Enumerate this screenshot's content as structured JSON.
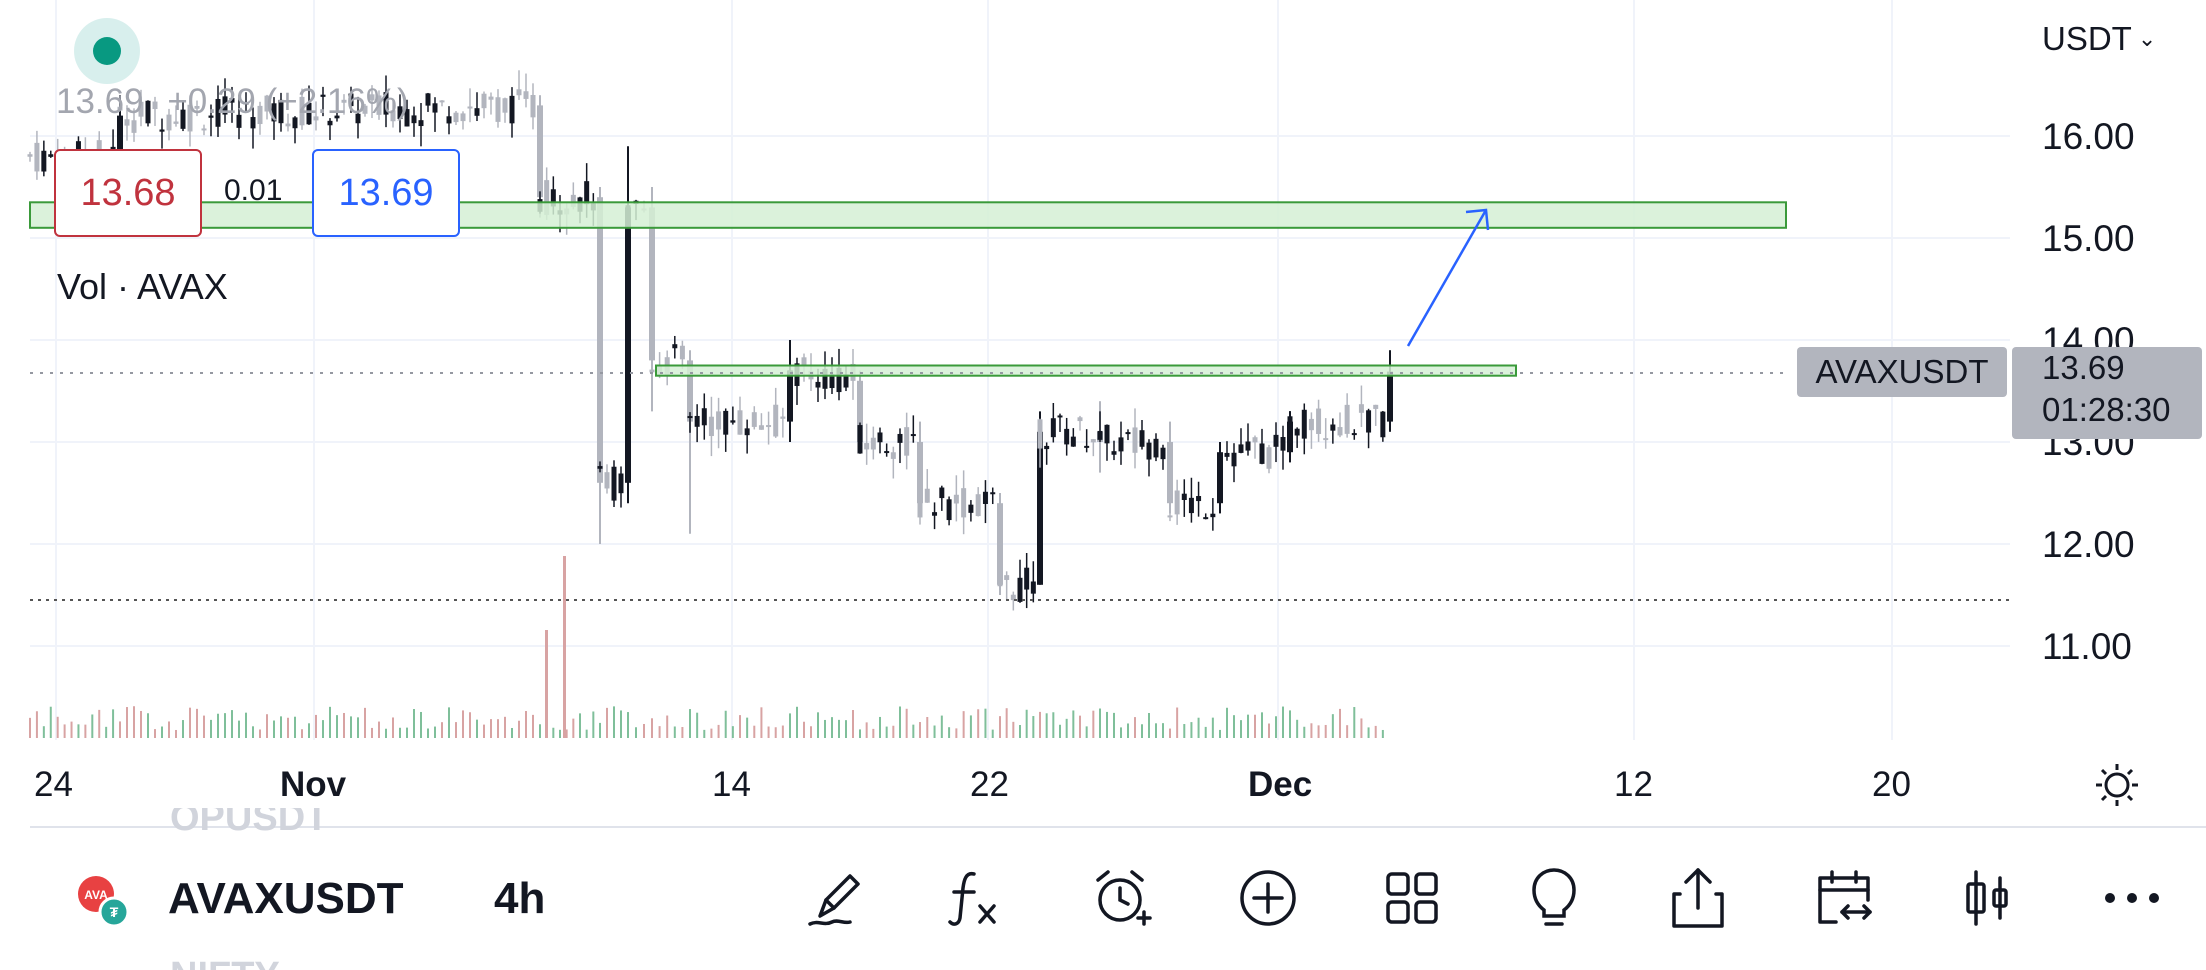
{
  "header": {
    "currency_selector": "USDT",
    "last_price": "13.69",
    "change": "+0.29 (+2.16%)",
    "bid_price": "13.68",
    "spread": "0.01",
    "ask_price": "13.69",
    "volume_label": "Vol · AVAX"
  },
  "price_axis": {
    "labels": [
      "16.00",
      "15.00",
      "14.00",
      "13.00",
      "12.00",
      "11.00"
    ]
  },
  "time_axis": {
    "labels": [
      "24",
      "Nov",
      "14",
      "22",
      "Dec",
      "12",
      "20"
    ]
  },
  "price_tag": {
    "symbol": "AVAXUSDT",
    "price": "13.69",
    "countdown": "01:28:30"
  },
  "bottom_bar": {
    "symbol": "AVAXUSDT",
    "interval": "4h",
    "prev_watchlist_item": "OPUSDT",
    "next_watchlist_item": "NIFTY",
    "icons": [
      "draw-icon",
      "indicators-icon",
      "alert-icon",
      "add-icon",
      "layout-icon",
      "ideas-icon",
      "share-icon",
      "replay-icon",
      "chart-type-icon",
      "more-icon"
    ]
  },
  "colors": {
    "up": "#26a69a",
    "candle_black": "#131722",
    "candle_gray": "#b2b5be",
    "bid": "#c0333e",
    "ask": "#2962ff",
    "zone_fill": "#d5f0d5",
    "zone_stroke": "#3a9a3a",
    "arrow": "#2962ff",
    "tag_bg": "#b2b5be"
  },
  "chart_data": {
    "type": "candlestick",
    "symbol": "AVAXUSDT",
    "interval": "4h",
    "ylim": [
      10.0,
      16.4
    ],
    "candles": [
      {
        "t": "Oct 24",
        "o": 15.6,
        "h": 15.9,
        "l": 15.5,
        "c": 15.8
      },
      {
        "t": "Oct 26",
        "o": 15.8,
        "h": 16.4,
        "l": 15.6,
        "c": 16.2
      },
      {
        "t": "Nov 3",
        "o": 16.3,
        "h": 16.4,
        "l": 15.2,
        "c": 15.4
      },
      {
        "t": "Nov 7",
        "o": 15.4,
        "h": 15.5,
        "l": 12.0,
        "c": 12.6
      },
      {
        "t": "Nov 9",
        "o": 12.6,
        "h": 15.9,
        "l": 12.4,
        "c": 15.3
      },
      {
        "t": "Nov 10",
        "o": 15.3,
        "h": 15.5,
        "l": 13.3,
        "c": 13.8
      },
      {
        "t": "Nov 14",
        "o": 13.8,
        "h": 13.9,
        "l": 12.1,
        "c": 13.2
      },
      {
        "t": "Nov 16",
        "o": 13.2,
        "h": 14.0,
        "l": 13.0,
        "c": 13.7
      },
      {
        "t": "Nov 18",
        "o": 13.6,
        "h": 13.7,
        "l": 12.9,
        "c": 13.0
      },
      {
        "t": "Nov 20",
        "o": 13.0,
        "h": 13.2,
        "l": 12.3,
        "c": 12.4
      },
      {
        "t": "Nov 22",
        "o": 12.4,
        "h": 12.5,
        "l": 11.5,
        "c": 11.6
      },
      {
        "t": "Nov 24",
        "o": 11.6,
        "h": 13.3,
        "l": 11.6,
        "c": 13.1
      },
      {
        "t": "Nov 26",
        "o": 13.1,
        "h": 13.4,
        "l": 12.7,
        "c": 13.0
      },
      {
        "t": "Nov 28",
        "o": 13.0,
        "h": 13.2,
        "l": 12.3,
        "c": 12.4
      },
      {
        "t": "Nov 30",
        "o": 12.4,
        "h": 13.0,
        "l": 12.3,
        "c": 12.9
      },
      {
        "t": "Dec 2",
        "o": 12.9,
        "h": 13.3,
        "l": 12.8,
        "c": 13.2
      },
      {
        "t": "Dec 4",
        "o": 13.2,
        "h": 13.9,
        "l": 13.1,
        "c": 13.69
      }
    ],
    "horizontal_lines": [
      {
        "price": 13.69,
        "style": "dotted"
      },
      {
        "price": 11.45,
        "style": "dotted"
      }
    ],
    "zones": [
      {
        "price_from": 15.1,
        "price_to": 15.35
      },
      {
        "price_from": 13.65,
        "price_to": 13.75
      }
    ],
    "volume_label": "Vol · AVAX"
  }
}
